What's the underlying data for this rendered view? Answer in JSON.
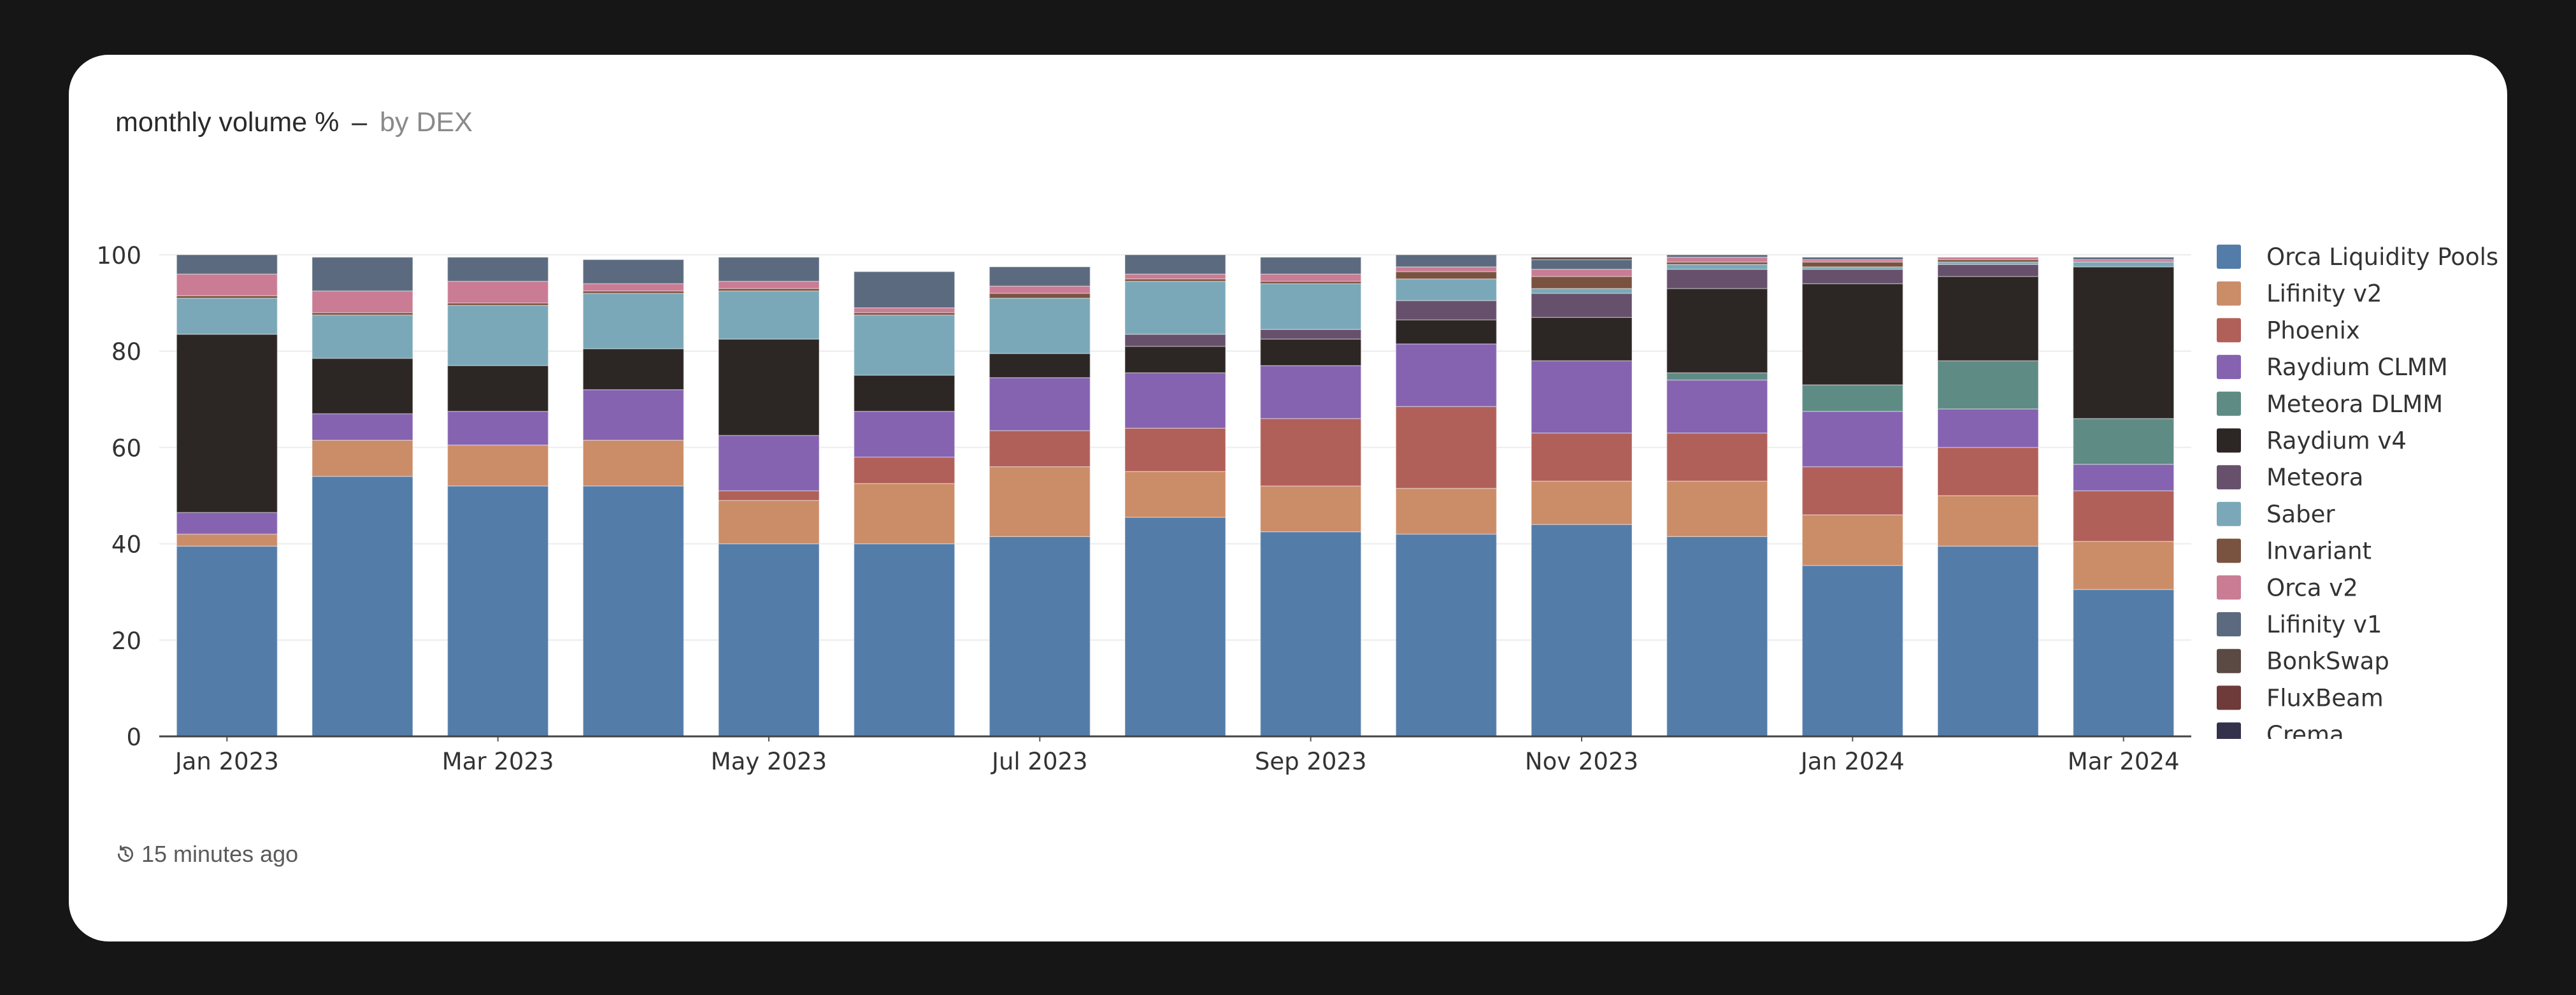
{
  "title": {
    "main": "monthly volume %",
    "separator": "–",
    "sub": "by DEX"
  },
  "footer": {
    "updated": "15 minutes ago",
    "icon": "history-icon"
  },
  "chart_data": {
    "type": "bar",
    "stacked": true,
    "title": "monthly volume % – by DEX",
    "xlabel": "",
    "ylabel": "",
    "ylim": [
      0,
      100
    ],
    "y_ticks": [
      0,
      20,
      40,
      60,
      80,
      100
    ],
    "grid": true,
    "legend_position": "right",
    "categories": [
      "Jan 2023",
      "Feb 2023",
      "Mar 2023",
      "Apr 2023",
      "May 2023",
      "Jun 2023",
      "Jul 2023",
      "Aug 2023",
      "Sep 2023",
      "Oct 2023",
      "Nov 2023",
      "Dec 2023",
      "Jan 2024",
      "Feb 2024",
      "Mar 2024"
    ],
    "x_tick_labels": [
      "Jan 2023",
      "",
      "Mar 2023",
      "",
      "May 2023",
      "",
      "Jul 2023",
      "",
      "Sep 2023",
      "",
      "Nov 2023",
      "",
      "Jan 2024",
      "",
      "Mar 2024"
    ],
    "series": [
      {
        "name": "Orca Liquidity Pools",
        "color": "#547ca8",
        "values": [
          39.5,
          54,
          52,
          52,
          40,
          40,
          41.5,
          45.5,
          42.5,
          42,
          44,
          41.5,
          35.5,
          39.5,
          30.5
        ]
      },
      {
        "name": "Lifinity v2",
        "color": "#cb8c68",
        "values": [
          2.5,
          7.5,
          8.5,
          9.5,
          9,
          12.5,
          14.5,
          9.5,
          9.5,
          9.5,
          9,
          11.5,
          10.5,
          10.5,
          10
        ]
      },
      {
        "name": "Phoenix",
        "color": "#b06059",
        "values": [
          0,
          0,
          0,
          0,
          2,
          5.5,
          7.5,
          9,
          14,
          17,
          10,
          10,
          10,
          10,
          10.5
        ]
      },
      {
        "name": "Raydium CLMM",
        "color": "#8563b0",
        "values": [
          4.5,
          5.5,
          7,
          10.5,
          11.5,
          9.5,
          11,
          11.5,
          11,
          13,
          15,
          11,
          11.5,
          8,
          5.5
        ]
      },
      {
        "name": "Meteora DLMM",
        "color": "#5f8b85",
        "values": [
          0,
          0,
          0,
          0,
          0,
          0,
          0,
          0,
          0,
          0,
          0,
          1.5,
          5.5,
          10,
          9.5
        ]
      },
      {
        "name": "Raydium v4",
        "color": "#2c2724",
        "values": [
          37,
          11.5,
          9.5,
          8.5,
          20,
          7.5,
          5,
          5.5,
          5.5,
          5,
          9,
          17.5,
          21,
          17.5,
          31.5
        ]
      },
      {
        "name": "Meteora",
        "color": "#67506b",
        "values": [
          0,
          0,
          0,
          0,
          0,
          0,
          0,
          2.5,
          2,
          4,
          5,
          4,
          3,
          2.5,
          0
        ]
      },
      {
        "name": "Saber",
        "color": "#7aa8b8",
        "values": [
          7.5,
          9,
          12.5,
          11.5,
          10,
          12.5,
          11.5,
          11,
          9.5,
          4.5,
          1,
          1,
          0.5,
          0.5,
          1
        ]
      },
      {
        "name": "Invariant",
        "color": "#7a5240",
        "values": [
          0.5,
          0.5,
          0.5,
          0.5,
          0.5,
          0.5,
          1,
          0.5,
          0.5,
          1.5,
          2.5,
          0.5,
          1,
          0.5,
          0
        ]
      },
      {
        "name": "Orca v2",
        "color": "#c97c94",
        "values": [
          4.5,
          4.5,
          4.5,
          1.5,
          1.5,
          1,
          1.5,
          1,
          1.5,
          1,
          1.5,
          1,
          0.5,
          0.5,
          0.5
        ]
      },
      {
        "name": "Lifinity v1",
        "color": "#5b6a7f",
        "values": [
          4,
          7,
          5,
          5,
          5,
          7.5,
          4,
          4,
          3.5,
          2.5,
          2,
          0.5,
          0.5,
          0,
          0.5
        ]
      },
      {
        "name": "BonkSwap",
        "color": "#5a4a43",
        "values": [
          0,
          0,
          0,
          0,
          0,
          0,
          0,
          0,
          0,
          0,
          0.5,
          0,
          0,
          0,
          0
        ]
      },
      {
        "name": "FluxBeam",
        "color": "#6e3a3a",
        "values": [
          0,
          0,
          0,
          0,
          0,
          0,
          0,
          0,
          0,
          0,
          0,
          0,
          0,
          0,
          0
        ]
      },
      {
        "name": "Crema",
        "color": "#34324a",
        "values": [
          0,
          0,
          0,
          0,
          0,
          0,
          0,
          0,
          0,
          0,
          0,
          0,
          0,
          0,
          0
        ]
      }
    ]
  }
}
